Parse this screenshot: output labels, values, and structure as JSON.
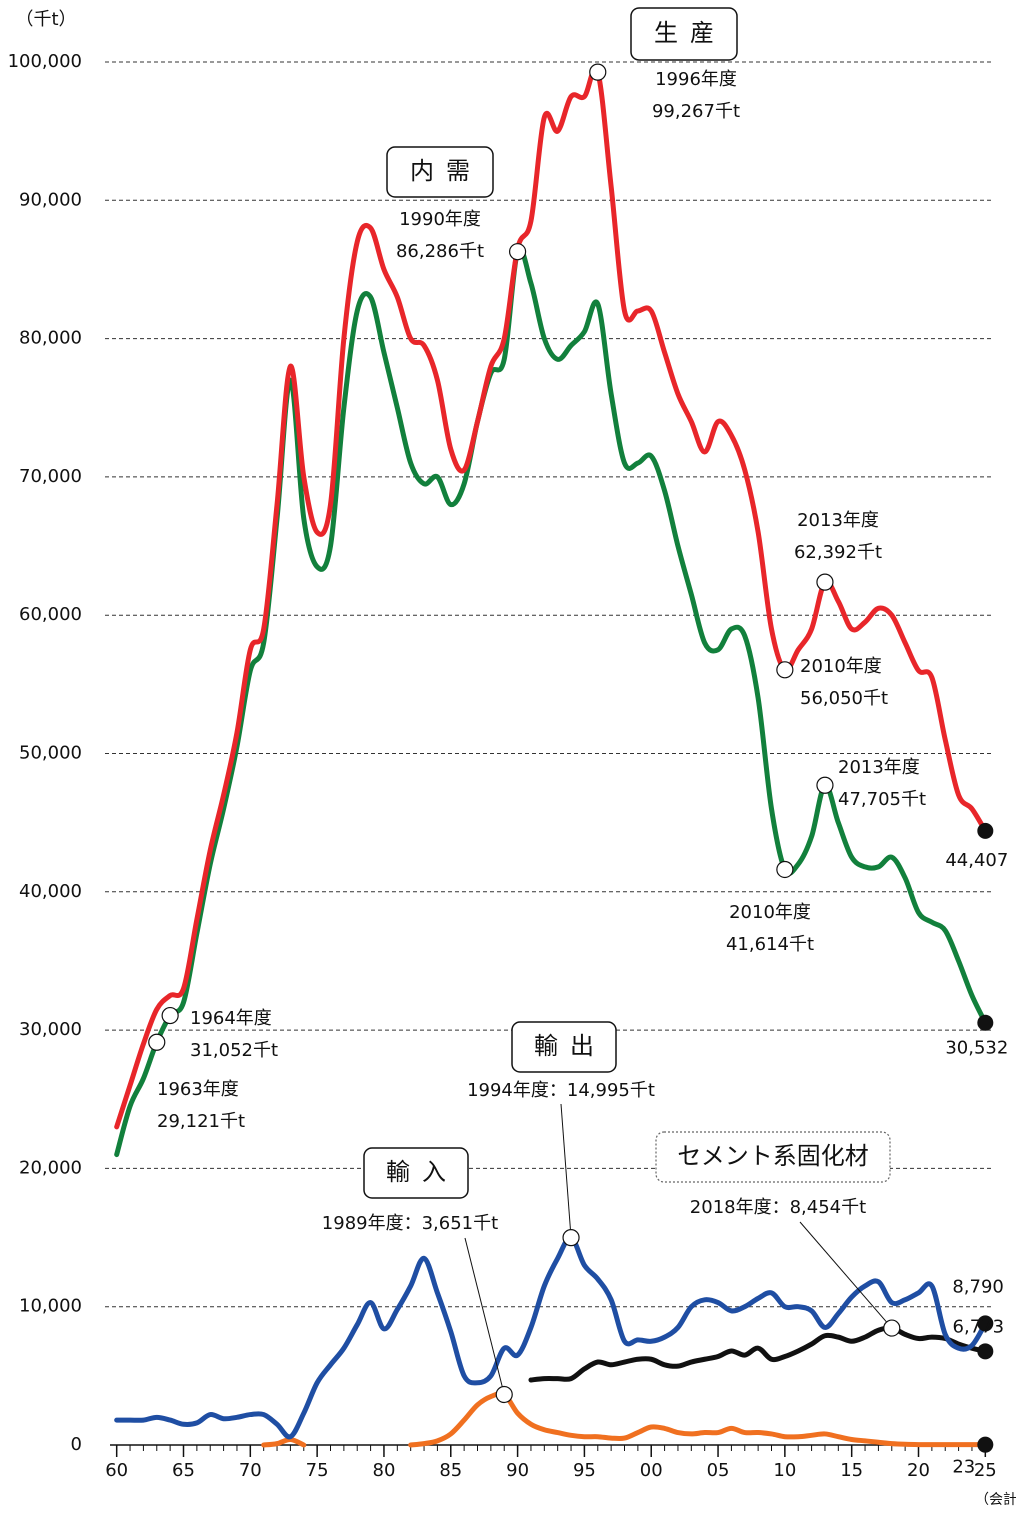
{
  "chart_data": {
    "type": "line",
    "y_label": "（千t）",
    "x_label": "（会計年度）",
    "x": [
      1960,
      1961,
      1962,
      1963,
      1964,
      1965,
      1966,
      1967,
      1968,
      1969,
      1970,
      1971,
      1972,
      1973,
      1974,
      1975,
      1976,
      1977,
      1978,
      1979,
      1980,
      1981,
      1982,
      1983,
      1984,
      1985,
      1986,
      1987,
      1988,
      1989,
      1990,
      1991,
      1992,
      1993,
      1994,
      1995,
      1996,
      1997,
      1998,
      1999,
      2000,
      2001,
      2002,
      2003,
      2004,
      2005,
      2006,
      2007,
      2008,
      2009,
      2010,
      2011,
      2012,
      2013,
      2014,
      2015,
      2016,
      2017,
      2018,
      2019,
      2020,
      2021,
      2022,
      2023,
      2024,
      2025
    ],
    "series": [
      {
        "name": "生産",
        "color": "#e8262a",
        "values": [
          23000,
          26000,
          29000,
          31500,
          32500,
          33000,
          38000,
          43000,
          47000,
          51500,
          57500,
          59000,
          68000,
          78000,
          70000,
          66000,
          68000,
          80000,
          87000,
          88000,
          85000,
          83000,
          80000,
          79500,
          77000,
          72000,
          70500,
          74000,
          78000,
          80000,
          86500,
          88500,
          96000,
          95000,
          97500,
          97500,
          99267,
          91000,
          82000,
          82000,
          82000,
          79000,
          76000,
          74000,
          71800,
          74000,
          73000,
          70500,
          66000,
          59000,
          56050,
          57500,
          59000,
          62392,
          61000,
          59000,
          59500,
          60500,
          60000,
          58000,
          56000,
          55500,
          51000,
          47000,
          46000,
          44407
        ],
        "value_labels": [
          null,
          null,
          null,
          null,
          null,
          null,
          null,
          null,
          null,
          null,
          null,
          null,
          null,
          null,
          null,
          null,
          null,
          null,
          null,
          null,
          null,
          null,
          null,
          null,
          null,
          null,
          null,
          null,
          null,
          null,
          null,
          null,
          null,
          null,
          null,
          null,
          null,
          null,
          null,
          null,
          null,
          null,
          null,
          null,
          null,
          null,
          null,
          null,
          null,
          null,
          null,
          null,
          null,
          null,
          null,
          null,
          null,
          null,
          null,
          null,
          null,
          null,
          null,
          null,
          null,
          "44,407"
        ]
      },
      {
        "name": "内需",
        "color": "#12803c",
        "values": [
          21000,
          24500,
          26500,
          29121,
          31052,
          32000,
          37000,
          42000,
          46000,
          50500,
          56000,
          58000,
          67000,
          77000,
          67000,
          63500,
          65000,
          75000,
          82000,
          83000,
          79000,
          75000,
          71000,
          69500,
          70000,
          68000,
          69500,
          74000,
          77500,
          78500,
          86286,
          84000,
          80000,
          78500,
          79500,
          80500,
          82500,
          76000,
          71000,
          71000,
          71500,
          69000,
          65000,
          61500,
          58000,
          57500,
          59000,
          58500,
          54000,
          46000,
          41614,
          42000,
          44000,
          47705,
          45000,
          42500,
          41800,
          41800,
          42500,
          41000,
          38500,
          37800,
          37200,
          35000,
          32500,
          30532
        ],
        "value_labels": [
          null,
          null,
          null,
          null,
          null,
          null,
          null,
          null,
          null,
          null,
          null,
          null,
          null,
          null,
          null,
          null,
          null,
          null,
          null,
          null,
          null,
          null,
          null,
          null,
          null,
          null,
          null,
          null,
          null,
          null,
          null,
          null,
          null,
          null,
          null,
          null,
          null,
          null,
          null,
          null,
          null,
          null,
          null,
          null,
          null,
          null,
          null,
          null,
          null,
          null,
          null,
          null,
          null,
          null,
          null,
          null,
          null,
          null,
          null,
          null,
          null,
          null,
          null,
          null,
          null,
          "30,532"
        ]
      },
      {
        "name": "輸出",
        "color": "#1f4ea3",
        "values": [
          1800,
          1800,
          1800,
          2000,
          1800,
          1500,
          1600,
          2200,
          1900,
          2000,
          2200,
          2200,
          1500,
          600,
          2300,
          4500,
          5800,
          7000,
          8700,
          10300,
          8400,
          9800,
          11500,
          13500,
          11000,
          8200,
          5000,
          4500,
          5000,
          7000,
          6500,
          8500,
          11500,
          13500,
          14995,
          13000,
          12000,
          10500,
          7500,
          7600,
          7500,
          7800,
          8500,
          10000,
          10500,
          10300,
          9700,
          10000,
          10600,
          11000,
          10000,
          10000,
          9700,
          8500,
          9500,
          10700,
          11500,
          11800,
          10300,
          10500,
          11000,
          11500,
          8000,
          7000,
          7200,
          8790
        ],
        "value_labels": [
          null,
          null,
          null,
          null,
          null,
          null,
          null,
          null,
          null,
          null,
          null,
          null,
          null,
          null,
          null,
          null,
          null,
          null,
          null,
          null,
          null,
          null,
          null,
          null,
          null,
          null,
          null,
          null,
          null,
          null,
          null,
          null,
          null,
          null,
          null,
          null,
          null,
          null,
          null,
          null,
          null,
          null,
          null,
          null,
          null,
          null,
          null,
          null,
          null,
          null,
          null,
          null,
          null,
          null,
          null,
          null,
          null,
          null,
          null,
          null,
          null,
          null,
          null,
          null,
          null,
          "8,790"
        ]
      },
      {
        "name": "輸入",
        "color": "#f07020",
        "values": [
          null,
          null,
          null,
          null,
          null,
          null,
          null,
          null,
          null,
          null,
          null,
          0,
          100,
          400,
          0,
          null,
          null,
          null,
          null,
          null,
          null,
          null,
          0,
          100,
          300,
          800,
          1800,
          2900,
          3500,
          3651,
          2300,
          1500,
          1100,
          900,
          700,
          600,
          600,
          500,
          500,
          900,
          1300,
          1200,
          900,
          800,
          900,
          900,
          1200,
          900,
          900,
          800,
          600,
          600,
          700,
          800,
          600,
          400,
          300,
          200,
          100,
          50,
          30,
          30,
          30,
          30,
          30,
          23
        ]
      },
      {
        "name": "セメント系固化材",
        "color": "#111111",
        "values": [
          null,
          null,
          null,
          null,
          null,
          null,
          null,
          null,
          null,
          null,
          null,
          null,
          null,
          null,
          null,
          null,
          null,
          null,
          null,
          null,
          null,
          null,
          null,
          null,
          null,
          null,
          null,
          null,
          null,
          null,
          null,
          4700,
          4800,
          4800,
          4800,
          5500,
          6000,
          5800,
          6000,
          6200,
          6200,
          5800,
          5700,
          6000,
          6200,
          6400,
          6800,
          6500,
          7000,
          6200,
          6400,
          6800,
          7300,
          7900,
          7800,
          7500,
          7800,
          8300,
          8454,
          8000,
          7700,
          7800,
          7700,
          7300,
          7000,
          6773
        ],
        "value_labels": [
          null,
          null,
          null,
          null,
          null,
          null,
          null,
          null,
          null,
          null,
          null,
          null,
          null,
          null,
          null,
          null,
          null,
          null,
          null,
          null,
          null,
          null,
          null,
          null,
          null,
          null,
          null,
          null,
          null,
          null,
          null,
          null,
          null,
          null,
          null,
          null,
          null,
          null,
          null,
          null,
          null,
          null,
          null,
          null,
          null,
          null,
          null,
          null,
          null,
          null,
          null,
          null,
          null,
          null,
          null,
          null,
          null,
          null,
          null,
          null,
          null,
          null,
          null,
          null,
          null,
          "6,773"
        ]
      }
    ],
    "xlim": [
      1959.5,
      2025.5
    ],
    "xticks": [
      {
        "value": 1960,
        "label": "60"
      },
      {
        "value": 1965,
        "label": "65"
      },
      {
        "value": 1970,
        "label": "70"
      },
      {
        "value": 1975,
        "label": "75"
      },
      {
        "value": 1980,
        "label": "80"
      },
      {
        "value": 1985,
        "label": "85"
      },
      {
        "value": 1990,
        "label": "90"
      },
      {
        "value": 1995,
        "label": "95"
      },
      {
        "value": 2000,
        "label": "00"
      },
      {
        "value": 2005,
        "label": "05"
      },
      {
        "value": 2010,
        "label": "10"
      },
      {
        "value": 2015,
        "label": "15"
      },
      {
        "value": 2020,
        "label": "20"
      },
      {
        "value": 2025,
        "label": "25"
      }
    ],
    "ylim": [
      0,
      100000
    ],
    "yticks": [
      0,
      {
        "value": 10000,
        "label": "10,000"
      },
      {
        "value": 20000,
        "label": "20,000"
      },
      {
        "value": 30000,
        "label": "30,000"
      },
      {
        "value": 40000,
        "label": "40,000"
      },
      {
        "value": 50000,
        "label": "50,000"
      },
      {
        "value": 60000,
        "label": "60,000"
      },
      {
        "value": 70000,
        "label": "70,000"
      },
      {
        "value": 80000,
        "label": "80,000"
      },
      {
        "value": 90000,
        "label": "90,000"
      },
      {
        "value": 100000,
        "label": "100,000"
      }
    ],
    "grid": true,
    "annotations": [
      {
        "lines": [
          "1996年度",
          "99,267千t"
        ],
        "x": 1996,
        "y": 99267
      },
      {
        "lines": [
          "1990年度",
          "86,286千t"
        ],
        "x": 1990,
        "y": 86286
      },
      {
        "lines": [
          "1964年度",
          "31,052千t"
        ],
        "x": 1964,
        "y": 31052
      },
      {
        "lines": [
          "1963年度",
          "29,121千t"
        ],
        "x": 1963,
        "y": 29121
      },
      {
        "lines": [
          "2013年度",
          "62,392千t"
        ],
        "x": 2013,
        "y": 62392
      },
      {
        "lines": [
          "2010年度",
          "56,050千t"
        ],
        "x": 2010,
        "y": 56050
      },
      {
        "lines": [
          "2013年度",
          "47,705千t"
        ],
        "x": 2013,
        "y": 47705
      },
      {
        "lines": [
          "2010年度",
          "41,614千t"
        ],
        "x": 2010,
        "y": 41614
      },
      {
        "lines": [
          "1994年度：14,995千t"
        ],
        "x": 1994,
        "y": 14995
      },
      {
        "lines": [
          "1989年度：3,651千t"
        ],
        "x": 1989,
        "y": 3651
      },
      {
        "lines": [
          "2018年度：8,454千t"
        ],
        "x": 2018,
        "y": 8454
      }
    ]
  }
}
